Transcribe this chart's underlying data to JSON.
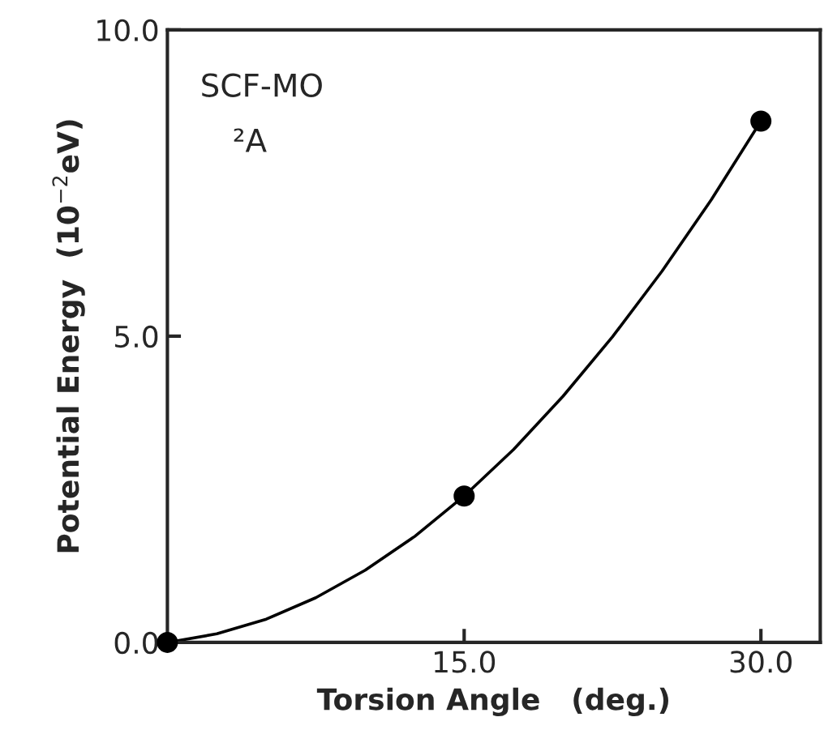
{
  "chart_data": {
    "type": "line",
    "xlabel": "Torsion Angle   (deg.)",
    "ylabel": "Potential Energy  (10$^{−2}$eV)",
    "annotations": [
      "SCF-MO",
      "²A"
    ],
    "series": [
      {
        "color": "#000000",
        "marker": "none",
        "x": [
          0,
          2.5,
          5,
          7.5,
          10,
          12.5,
          15,
          17.5,
          20,
          22.5,
          25,
          27.5,
          30
        ],
        "values": [
          0,
          0.14,
          0.38,
          0.73,
          1.18,
          1.73,
          2.39,
          3.15,
          4.02,
          4.99,
          6.06,
          7.23,
          8.51
        ]
      },
      {
        "type": "scatter",
        "color": "#000000",
        "marker": "circle",
        "x": [
          0,
          15,
          30
        ],
        "values": [
          0,
          2.39,
          8.51
        ]
      }
    ],
    "xlim": [
      0,
      33
    ],
    "ylim": [
      0,
      10
    ],
    "xticks": [
      {
        "value": 15,
        "label": "15.0"
      },
      {
        "value": 30,
        "label": "30.0"
      }
    ],
    "yticks": [
      {
        "value": 0,
        "label": "0.0"
      },
      {
        "value": 5,
        "label": "5.0"
      },
      {
        "value": 10,
        "label": "10.0"
      }
    ],
    "grid": false,
    "legend": false
  }
}
